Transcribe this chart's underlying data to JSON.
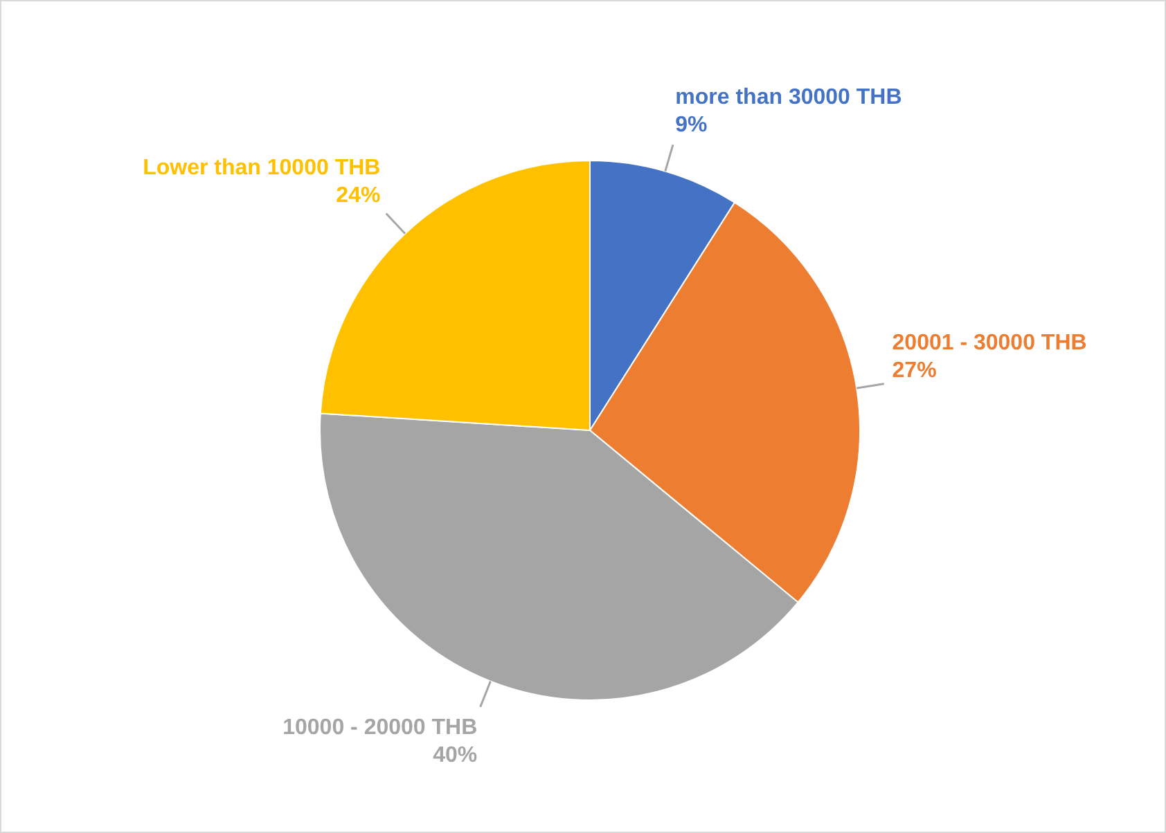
{
  "chart_data": {
    "type": "pie",
    "categories": [
      "more than 30000 THB",
      "20001 - 30000 THB",
      "10000 - 20000 THB",
      "Lower than 10000 THB"
    ],
    "values": [
      9,
      27,
      40,
      24
    ],
    "colors": [
      "#4472c4",
      "#ed7d31",
      "#a5a5a5",
      "#ffc000"
    ],
    "value_labels": [
      "9%",
      "27%",
      "40%",
      "24%"
    ]
  }
}
